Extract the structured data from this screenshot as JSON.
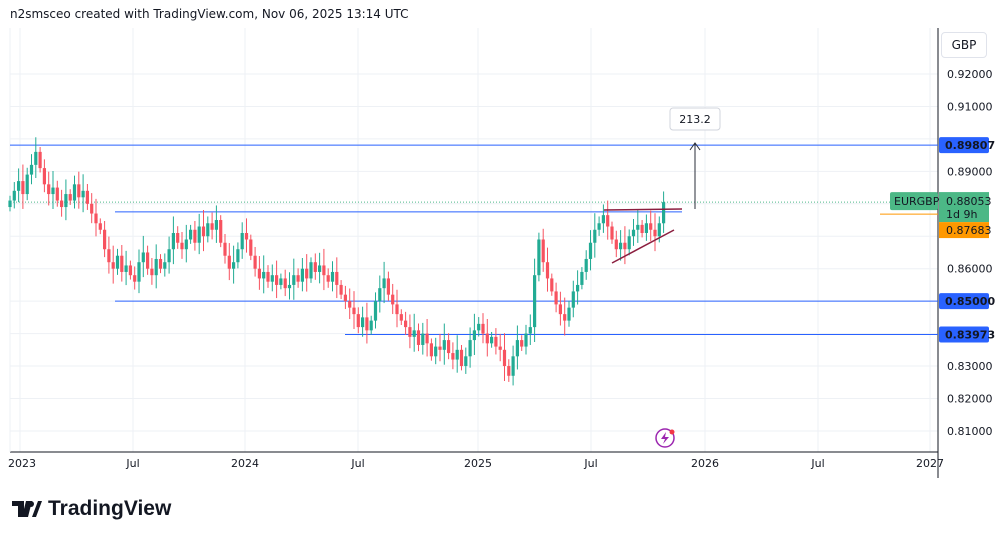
{
  "header": {
    "attribution": "n2smsceo created with TradingView.com, Nov 06, 2025 13:14 UTC"
  },
  "currency_button": "GBP",
  "logo": {
    "text": "TradingView"
  },
  "colors": {
    "up": "#22ab94",
    "down": "#f7525f",
    "level": "#2962ff",
    "last": "#4cb886",
    "prev": "#ff9800",
    "pattern": "#8b1e3f",
    "grid": "#eef1f5"
  },
  "chart_data": {
    "type": "candlestick",
    "symbol": "EURGBP",
    "interval": "weekly",
    "y_ticks": [
      "0.92000",
      "0.91000",
      "0.89000",
      "0.86000",
      "0.83000",
      "0.82000",
      "0.81000"
    ],
    "x_ticks": [
      "2023",
      "Jul",
      "2024",
      "Jul",
      "2025",
      "Jul",
      "2026",
      "Jul",
      "2027"
    ],
    "ylim": [
      0.805,
      0.935
    ],
    "closes": [
      0.881,
      0.884,
      0.887,
      0.883,
      0.889,
      0.892,
      0.896,
      0.891,
      0.886,
      0.883,
      0.885,
      0.881,
      0.879,
      0.883,
      0.881,
      0.886,
      0.882,
      0.884,
      0.88,
      0.877,
      0.874,
      0.872,
      0.866,
      0.862,
      0.86,
      0.864,
      0.859,
      0.861,
      0.858,
      0.856,
      0.862,
      0.865,
      0.86,
      0.858,
      0.863,
      0.86,
      0.862,
      0.866,
      0.871,
      0.868,
      0.866,
      0.869,
      0.872,
      0.868,
      0.873,
      0.87,
      0.874,
      0.872,
      0.875,
      0.868,
      0.864,
      0.86,
      0.862,
      0.866,
      0.871,
      0.869,
      0.864,
      0.86,
      0.857,
      0.859,
      0.856,
      0.858,
      0.855,
      0.857,
      0.854,
      0.855,
      0.858,
      0.856,
      0.86,
      0.857,
      0.862,
      0.859,
      0.861,
      0.858,
      0.856,
      0.859,
      0.855,
      0.852,
      0.85,
      0.848,
      0.846,
      0.842,
      0.845,
      0.841,
      0.844,
      0.85,
      0.854,
      0.857,
      0.852,
      0.849,
      0.846,
      0.844,
      0.842,
      0.839,
      0.841,
      0.8365,
      0.84,
      0.837,
      0.833,
      0.836,
      0.835,
      0.838,
      0.834,
      0.832,
      0.835,
      0.83,
      0.833,
      0.838,
      0.841,
      0.843,
      0.84,
      0.837,
      0.839,
      0.836,
      0.835,
      0.83,
      0.827,
      0.833,
      0.838,
      0.836,
      0.84,
      0.842,
      0.858,
      0.869,
      0.862,
      0.857,
      0.853,
      0.849,
      0.846,
      0.844,
      0.848,
      0.853,
      0.855,
      0.859,
      0.863,
      0.868,
      0.872,
      0.874,
      0.8765,
      0.873,
      0.869,
      0.866,
      0.868,
      0.866,
      0.87,
      0.872,
      0.8735,
      0.871,
      0.874,
      0.872,
      0.87,
      0.874,
      0.8805
    ],
    "levels": [
      {
        "label": "0.89807",
        "price": 0.89807
      },
      {
        "label": "0.85000",
        "price": 0.85
      },
      {
        "label": "0.83973",
        "price": 0.83973
      }
    ],
    "resistance_price": 0.8775,
    "last_price": {
      "symbol": "EURGBP",
      "value": "0.88053",
      "countdown": "1d 9h",
      "price": 0.88053
    },
    "prev_close": {
      "value": "0.87683",
      "price": 0.87683
    },
    "measure_label": "213.2"
  }
}
